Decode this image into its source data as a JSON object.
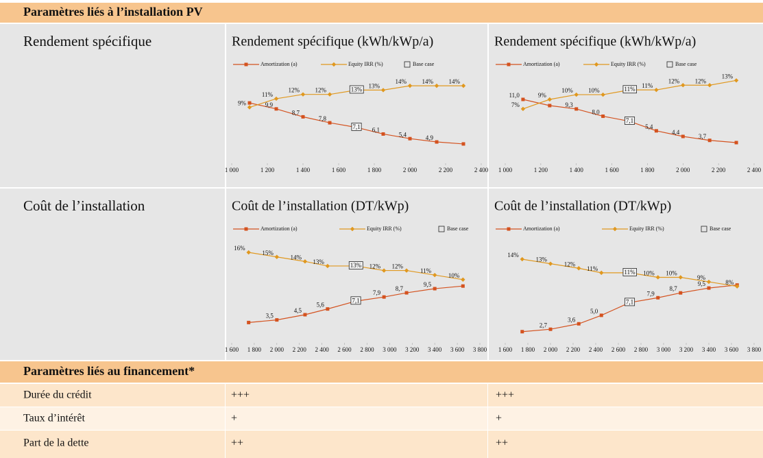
{
  "sections": [
    {
      "title": "Paramètres liés à l’installation PV",
      "rows": [
        {
          "label": "Rendement spécifique"
        },
        {
          "label": "Coût de l’installation"
        }
      ]
    },
    {
      "title": "Paramètres liés au financement*",
      "rows": [
        {
          "label": "Durée du crédit",
          "cells": [
            "+++",
            "+++"
          ]
        },
        {
          "label": "Taux d’intérêt",
          "cells": [
            "+",
            "+"
          ]
        },
        {
          "label": "Part de la dette",
          "cells": [
            "++",
            "++"
          ]
        }
      ]
    }
  ],
  "chart_data": [
    {
      "type": "line",
      "title": "Rendement spécifique (kWh/kWp/a)",
      "base_case_label": "Base case",
      "base_x": 1700,
      "x": [
        1100,
        1250,
        1400,
        1550,
        1700,
        1850,
        2000,
        2150,
        2300
      ],
      "xlim": [
        1000,
        2400
      ],
      "xticks": [
        {
          "value": 1000,
          "label": "1 000"
        },
        {
          "value": 1200,
          "label": "1 200"
        },
        {
          "value": 1400,
          "label": "1 400"
        },
        {
          "value": 1600,
          "label": "1 600"
        },
        {
          "value": 1800,
          "label": "1 800"
        },
        {
          "value": 2000,
          "label": "2 000"
        },
        {
          "value": 2200,
          "label": "2 200"
        },
        {
          "value": 2400,
          "label": "2 400"
        }
      ],
      "ylim": [
        2,
        16
      ],
      "y2lim": [
        -3.5,
        18
      ],
      "series": [
        {
          "name": "Amortization (a)",
          "color": "#d4521f",
          "marker": "square",
          "values": [
            10.8,
            9.9,
            8.7,
            7.8,
            7.1,
            6.1,
            5.4,
            4.9,
            4.6
          ],
          "value_labels": [
            null,
            "9,9",
            "8,7",
            "7,8",
            "7,1",
            "6,1",
            "5,4",
            "4,9",
            null
          ]
        },
        {
          "name": "Equity IRR (%)",
          "color": "#e0981f",
          "marker": "diamond",
          "axis": "y2",
          "values": [
            9,
            11,
            12,
            12,
            13,
            13,
            14,
            14,
            14
          ],
          "value_labels": [
            "9%",
            "11%",
            "12%",
            "12%",
            "13%",
            "13%",
            "14%",
            "14%",
            "14%"
          ]
        }
      ]
    },
    {
      "type": "line",
      "title": "Rendement spécifique (kWh/kWp/a)",
      "base_case_label": "Base case",
      "base_x": 1700,
      "x": [
        1100,
        1250,
        1400,
        1550,
        1700,
        1850,
        2000,
        2150,
        2300
      ],
      "xlim": [
        1000,
        2400
      ],
      "xticks": [
        {
          "value": 1000,
          "label": "1 000"
        },
        {
          "value": 1200,
          "label": "1 200"
        },
        {
          "value": 1400,
          "label": "1 400"
        },
        {
          "value": 1600,
          "label": "1 600"
        },
        {
          "value": 1800,
          "label": "1 800"
        },
        {
          "value": 2000,
          "label": "2 000"
        },
        {
          "value": 2200,
          "label": "2 200"
        },
        {
          "value": 2400,
          "label": "2 400"
        }
      ],
      "ylim": [
        0,
        16.5
      ],
      "y2lim": [
        -4,
        15.5
      ],
      "series": [
        {
          "name": "Amortization (a)",
          "color": "#d4521f",
          "marker": "square",
          "values": [
            11.0,
            9.9,
            9.3,
            8.0,
            7.1,
            5.4,
            4.4,
            3.7,
            3.3
          ],
          "value_labels": [
            "11,0",
            null,
            "9,3",
            "8,0",
            "7,1",
            "5,4",
            "4,4",
            "3,7",
            null
          ]
        },
        {
          "name": "Equity IRR (%)",
          "color": "#e0981f",
          "marker": "diamond",
          "axis": "y2",
          "values": [
            7,
            9,
            10,
            10,
            11,
            11,
            12,
            12,
            13
          ],
          "value_labels": [
            "7%",
            "9%",
            "10%",
            "10%",
            "11%",
            "11%",
            "12%",
            "12%",
            "13%"
          ]
        }
      ]
    },
    {
      "type": "line",
      "title": "Coût de l’installation (DT/kWp)",
      "base_case_label": "Base case",
      "base_x": 2700,
      "x": [
        1750,
        2000,
        2250,
        2450,
        2700,
        2950,
        3150,
        3400,
        3650
      ],
      "xlim": [
        1600,
        3800
      ],
      "xticks": [
        {
          "value": 1600,
          "label": "1 600"
        },
        {
          "value": 1800,
          "label": "1 800"
        },
        {
          "value": 2000,
          "label": "2 000"
        },
        {
          "value": 2200,
          "label": "2 200"
        },
        {
          "value": 2400,
          "label": "2 400"
        },
        {
          "value": 2600,
          "label": "2 600"
        },
        {
          "value": 2800,
          "label": "2 800"
        },
        {
          "value": 3000,
          "label": "3 000"
        },
        {
          "value": 3200,
          "label": "3 200"
        },
        {
          "value": 3400,
          "label": "3 400"
        },
        {
          "value": 3600,
          "label": "3 600"
        },
        {
          "value": 3800,
          "label": "3 800"
        }
      ],
      "ylim": [
        -0.5,
        19.5
      ],
      "y2lim": [
        -3.5,
        19.5
      ],
      "series": [
        {
          "name": "Amortization (a)",
          "color": "#d4521f",
          "marker": "square",
          "values": [
            3.0,
            3.5,
            4.5,
            5.6,
            7.1,
            7.9,
            8.7,
            9.5,
            10.0
          ],
          "value_labels": [
            null,
            "3,5",
            "4,5",
            "5,6",
            "7,1",
            "7,9",
            "8,7",
            "9,5",
            null
          ]
        },
        {
          "name": "Equity IRR (%)",
          "color": "#e0981f",
          "marker": "diamond",
          "axis": "y2",
          "values": [
            16,
            15,
            14,
            13,
            13,
            12,
            12,
            11,
            10
          ],
          "value_labels": [
            "16%",
            "15%",
            "14%",
            "13%",
            "13%",
            "12%",
            "12%",
            "11%",
            "10%"
          ]
        }
      ]
    },
    {
      "type": "line",
      "title": "Coût de l’installation (DT/kWp)",
      "base_case_label": "Base case",
      "base_x": 2700,
      "x": [
        1750,
        2000,
        2250,
        2450,
        2700,
        2950,
        3150,
        3400,
        3650
      ],
      "xlim": [
        1600,
        3800
      ],
      "xticks": [
        {
          "value": 1600,
          "label": "1 600"
        },
        {
          "value": 1800,
          "label": "1 800"
        },
        {
          "value": 2000,
          "label": "2 000"
        },
        {
          "value": 2200,
          "label": "2 200"
        },
        {
          "value": 2400,
          "label": "2 400"
        },
        {
          "value": 2600,
          "label": "2 600"
        },
        {
          "value": 2800,
          "label": "2 800"
        },
        {
          "value": 3000,
          "label": "3 000"
        },
        {
          "value": 3200,
          "label": "3 200"
        },
        {
          "value": 3400,
          "label": "3 400"
        },
        {
          "value": 3600,
          "label": "3 600"
        },
        {
          "value": 3800,
          "label": "3 800"
        }
      ],
      "ylim": [
        0.8,
        18
      ],
      "y2lim": [
        -4,
        19
      ],
      "series": [
        {
          "name": "Amortization (a)",
          "color": "#d4521f",
          "marker": "square",
          "values": [
            2.3,
            2.7,
            3.6,
            5.0,
            7.1,
            7.9,
            8.7,
            9.5,
            10.0
          ],
          "value_labels": [
            null,
            "2,7",
            "3,6",
            "5,0",
            "7,1",
            "7,9",
            "8,7",
            "9,5",
            null
          ]
        },
        {
          "name": "Equity IRR (%)",
          "color": "#e0981f",
          "marker": "diamond",
          "axis": "y2",
          "values": [
            14,
            13,
            12,
            11,
            11,
            10,
            10,
            9,
            8
          ],
          "value_labels": [
            "14%",
            "13%",
            "12%",
            "11%",
            "11%",
            "10%",
            "10%",
            "9%",
            "8%"
          ]
        }
      ]
    }
  ]
}
